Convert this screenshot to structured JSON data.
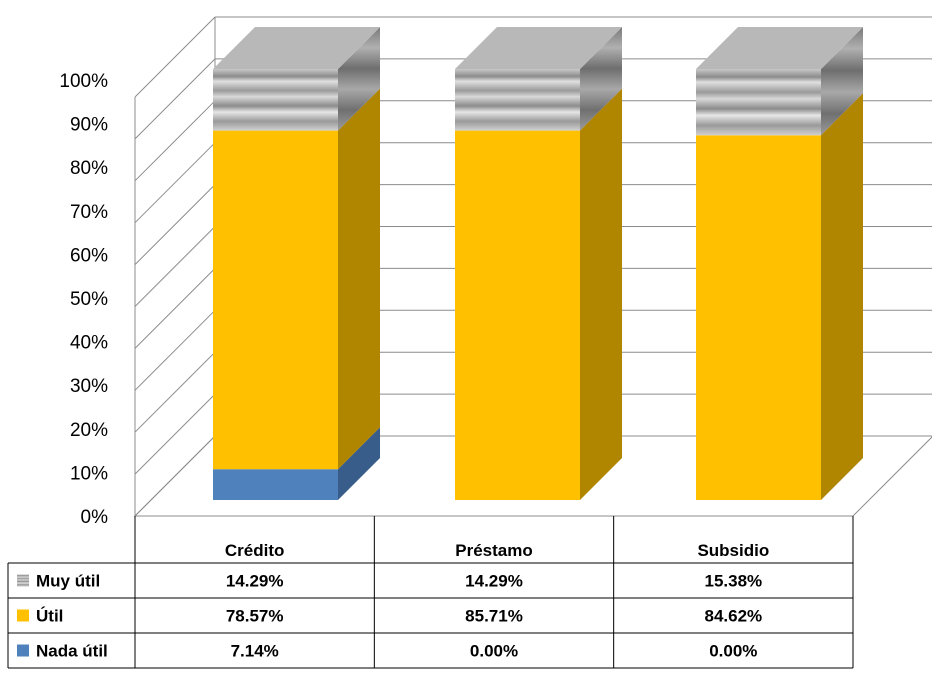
{
  "chart_data": {
    "type": "bar",
    "stacked": true,
    "percent_stacked": true,
    "three_d": true,
    "categories": [
      "Crédito",
      "Préstamo",
      "Subsidio"
    ],
    "series": [
      {
        "name": "Nada útil",
        "values": [
          7.14,
          0.0,
          0.0
        ],
        "labels": [
          "7.14%",
          "0.00%",
          "0.00%"
        ],
        "color": "#4f81bd"
      },
      {
        "name": "Útil",
        "values": [
          78.57,
          85.71,
          84.62
        ],
        "labels": [
          "78.57%",
          "85.71%",
          "84.62%"
        ],
        "color": "#ffc000"
      },
      {
        "name": "Muy útil",
        "values": [
          14.29,
          14.29,
          15.38
        ],
        "labels": [
          "14.29%",
          "14.29%",
          "15.38%"
        ],
        "color": "#a6a6a6"
      }
    ],
    "y_ticks": [
      "0%",
      "10%",
      "20%",
      "30%",
      "40%",
      "50%",
      "60%",
      "70%",
      "80%",
      "90%",
      "100%"
    ],
    "ylim": [
      0,
      100
    ],
    "grid": true,
    "legend": "data-table",
    "data_table": true
  }
}
